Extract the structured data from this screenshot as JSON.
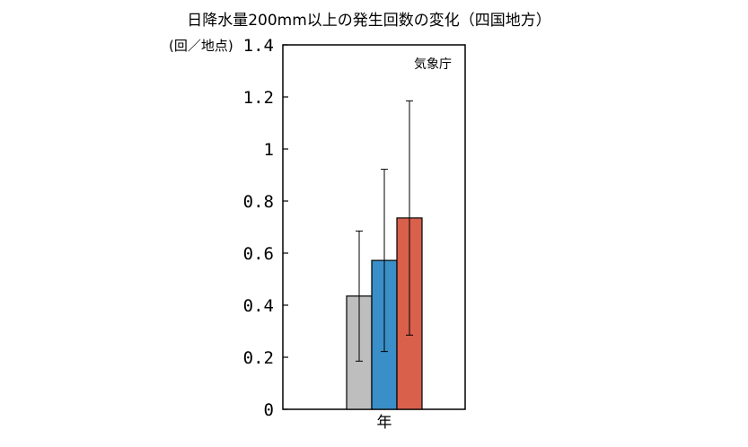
{
  "chart_data": {
    "type": "bar",
    "title": "日降水量200mm以上の発生回数の変化（四国地方）",
    "ylabel": "(回／地点)",
    "source_label": "気象庁",
    "categories": [
      "年"
    ],
    "ylim": [
      0,
      1.4
    ],
    "yticks": [
      {
        "value": 0,
        "label": "0"
      },
      {
        "value": 0.2,
        "label": "0.2"
      },
      {
        "value": 0.4,
        "label": "0.4"
      },
      {
        "value": 0.6,
        "label": "0.6"
      },
      {
        "value": 0.8,
        "label": "0.8"
      },
      {
        "value": 1.0,
        "label": "1"
      },
      {
        "value": 1.2,
        "label": "1.2"
      },
      {
        "value": 1.4,
        "label": "1.4"
      }
    ],
    "grid": false,
    "legend": "none",
    "series": [
      {
        "color": "#bebebe",
        "values": [
          0.435
        ],
        "error_low": [
          0.185
        ],
        "error_high": [
          0.685
        ]
      },
      {
        "color": "#3a8fc8",
        "values": [
          0.572
        ],
        "error_low": [
          0.222
        ],
        "error_high": [
          0.922
        ]
      },
      {
        "color": "#d9604b",
        "values": [
          0.735
        ],
        "error_low": [
          0.285
        ],
        "error_high": [
          1.185
        ]
      }
    ]
  }
}
